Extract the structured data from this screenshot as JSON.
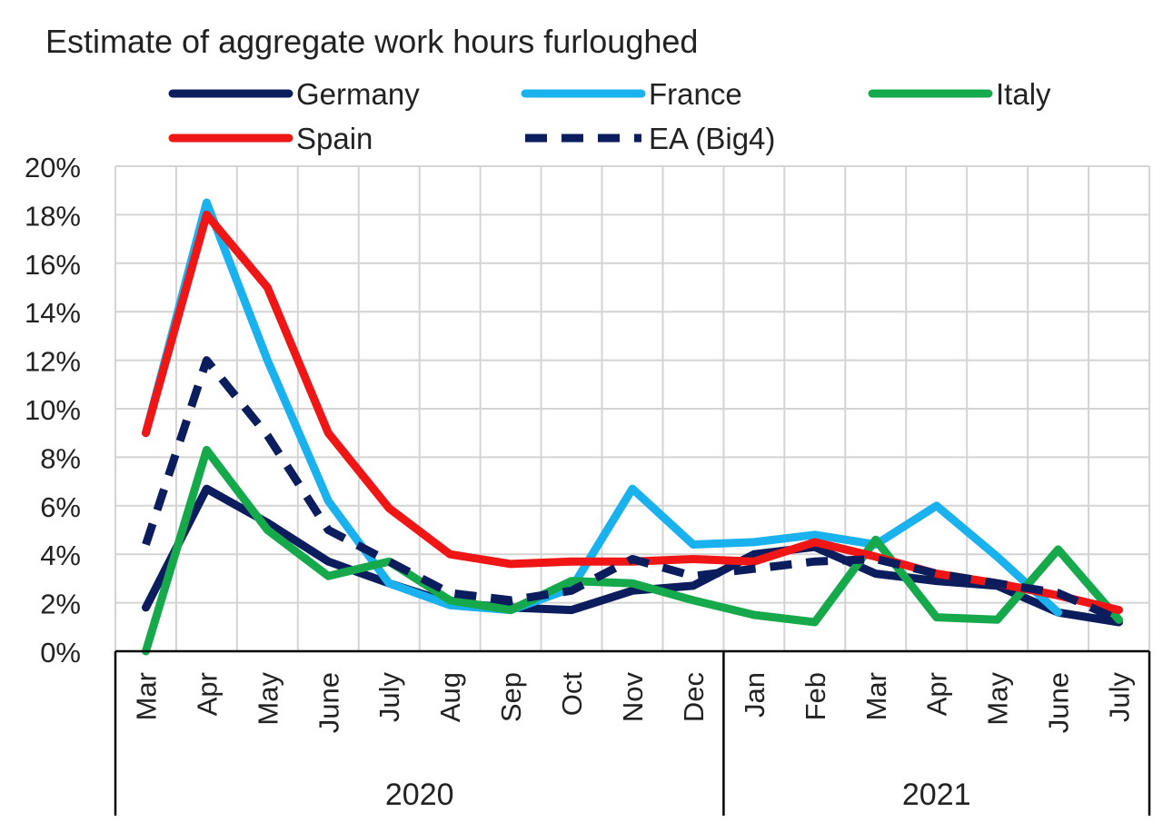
{
  "chart_data": {
    "type": "line",
    "title": "Estimate of aggregate work hours furloughed",
    "xlabel": "",
    "ylabel": "",
    "ylim": [
      0,
      20
    ],
    "yticks": [
      0,
      2,
      4,
      6,
      8,
      10,
      12,
      14,
      16,
      18,
      20
    ],
    "ytick_suffix": "%",
    "grid": true,
    "legend_placement": "top",
    "categories": [
      "Mar",
      "Apr",
      "May",
      "June",
      "July",
      "Aug",
      "Sep",
      "Oct",
      "Nov",
      "Dec",
      "Jan",
      "Feb",
      "Mar",
      "Apr",
      "May",
      "June",
      "July"
    ],
    "year_groups": [
      {
        "label": "2020",
        "start": 0,
        "end": 9
      },
      {
        "label": "2021",
        "start": 10,
        "end": 16
      }
    ],
    "series": [
      {
        "name": "Germany",
        "color": "#0b1d5c",
        "dashed": false,
        "values": [
          1.8,
          6.7,
          5.3,
          3.7,
          2.8,
          2.0,
          1.8,
          1.7,
          2.5,
          2.7,
          4.0,
          4.3,
          3.2,
          2.9,
          2.7,
          1.6,
          1.2
        ]
      },
      {
        "name": "France",
        "color": "#1ab1ef",
        "dashed": false,
        "values": [
          9.0,
          18.5,
          12.0,
          6.2,
          2.8,
          1.9,
          1.7,
          2.6,
          6.7,
          4.4,
          4.5,
          4.8,
          4.4,
          6.0,
          3.9,
          1.6,
          null
        ]
      },
      {
        "name": "Italy",
        "color": "#16a94c",
        "dashed": false,
        "values": [
          0.0,
          8.3,
          5.0,
          3.1,
          3.7,
          2.1,
          1.7,
          2.9,
          2.8,
          2.1,
          1.5,
          1.2,
          4.6,
          1.4,
          1.3,
          4.2,
          1.3
        ]
      },
      {
        "name": "Spain",
        "color": "#f01616",
        "dashed": false,
        "values": [
          9.0,
          18.0,
          15.0,
          9.0,
          5.9,
          4.0,
          3.6,
          3.7,
          3.7,
          3.8,
          3.7,
          4.5,
          3.9,
          3.2,
          2.8,
          2.3,
          1.7
        ]
      },
      {
        "name": "EA (Big4)",
        "color": "#0b1d5c",
        "dashed": true,
        "values": [
          4.4,
          12.0,
          8.9,
          5.0,
          3.7,
          2.4,
          2.1,
          2.5,
          3.8,
          3.1,
          3.4,
          3.7,
          3.8,
          3.2,
          2.8,
          2.4,
          1.3
        ]
      }
    ]
  }
}
